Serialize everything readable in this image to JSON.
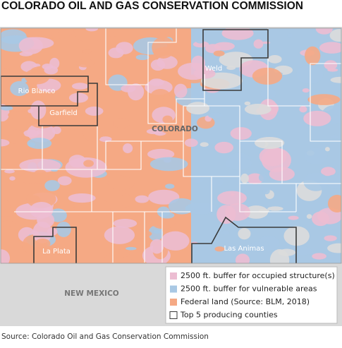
{
  "header": {
    "title": "COLORADO OIL AND GAS CONSERVATION COMMISSION"
  },
  "map": {
    "state_label": "COLORADO",
    "neighbor_label": "NEW MEXICO",
    "counties": [
      "Rio Blanco",
      "Garfield",
      "Weld",
      "La Plata",
      "Las Animas"
    ]
  },
  "legend": {
    "items": [
      {
        "label": "2500 ft. buffer for occupied structure(s)",
        "color": "#ecbdd2"
      },
      {
        "label": "2500 ft. buffer for vulnerable areas",
        "color": "#a9c8e4"
      },
      {
        "label": "Federal land (Source: BLM, 2018)",
        "color": "#f5a984"
      },
      {
        "label": "Top 5 producing counties",
        "color": "#3a3a3a"
      }
    ]
  },
  "footer": {
    "source": "Source: Colorado Oil and Gas Conservation Commission"
  }
}
